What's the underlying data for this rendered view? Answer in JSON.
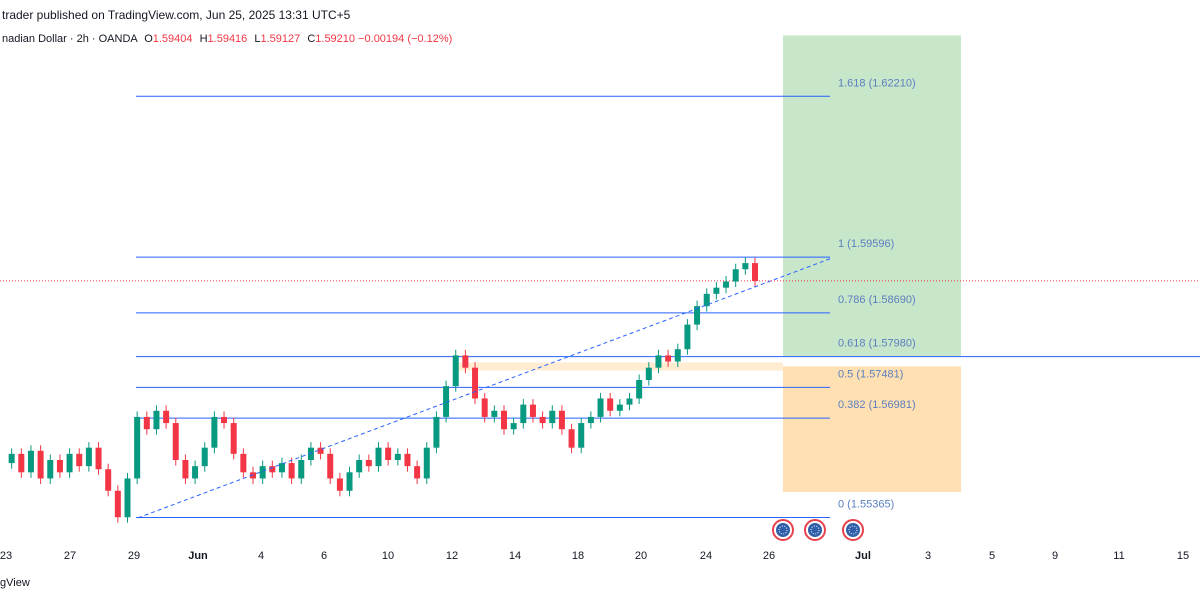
{
  "header": {
    "published": "trader published on TradingView.com, Jun 25, 2025 13:31 UTC+5",
    "symbol": "nadian Dollar · 2h · OANDA",
    "open_label": "O",
    "open": "1.59404",
    "high_label": "H",
    "high": "1.59416",
    "low_label": "L",
    "low": "1.59127",
    "close_label": "C",
    "close": "1.59210",
    "change": "−0.00194 (−0.12%)"
  },
  "footer": {
    "brand": "gView"
  },
  "colors": {
    "up": "#089981",
    "down": "#f23645",
    "fib_line": "#2962ff",
    "fib_text": "#5b7fbf",
    "target_zone": "#c8e6c9",
    "stop_zone": "#ffe0b2",
    "current_price": "#f23645",
    "marker": "#e8414d"
  },
  "chart_data": {
    "type": "candlestick",
    "title": "",
    "xlabel": "",
    "ylabel": "",
    "x_ticks": [
      "23",
      "27",
      "29",
      "Jun",
      "4",
      "6",
      "10",
      "12",
      "14",
      "18",
      "20",
      "24",
      "26",
      "Jul",
      "3",
      "5",
      "9",
      "11",
      "15"
    ],
    "ylim": [
      1.55,
      1.628
    ],
    "current_price": 1.5921,
    "fib_levels": [
      {
        "ratio": "1.618",
        "price": 1.6221,
        "label": "1.618 (1.62210)"
      },
      {
        "ratio": "1",
        "price": 1.59596,
        "label": "1 (1.59596)"
      },
      {
        "ratio": "0.786",
        "price": 1.5869,
        "label": "0.786 (1.58690)"
      },
      {
        "ratio": "0.618",
        "price": 1.5798,
        "label": "0.618 (1.57980)"
      },
      {
        "ratio": "0.5",
        "price": 1.57481,
        "label": "0.5 (1.57481)"
      },
      {
        "ratio": "0.382",
        "price": 1.56981,
        "label": "0.382 (1.56981)"
      },
      {
        "ratio": "0",
        "price": 1.55365,
        "label": "0 (1.55365)"
      }
    ],
    "zones": {
      "target": {
        "from": 1.5798,
        "to": 1.632
      },
      "stop": {
        "from": 1.5782,
        "to": 1.5578
      }
    },
    "trendline": {
      "from": 1.5536,
      "to": 1.5957
    },
    "price_path": [
      1.5625,
      1.564,
      1.561,
      1.5645,
      1.56,
      1.563,
      1.561,
      1.564,
      1.562,
      1.565,
      1.5615,
      1.558,
      1.5537,
      1.56,
      1.57,
      1.568,
      1.571,
      1.569,
      1.563,
      1.56,
      1.562,
      1.565,
      1.57,
      1.569,
      1.564,
      1.561,
      1.56,
      1.562,
      1.561,
      1.5625,
      1.56,
      1.563,
      1.565,
      1.564,
      1.56,
      1.558,
      1.561,
      1.563,
      1.562,
      1.565,
      1.563,
      1.564,
      1.562,
      1.56,
      1.565,
      1.57,
      1.575,
      1.58,
      1.578,
      1.573,
      1.57,
      1.571,
      1.568,
      1.569,
      1.572,
      1.57,
      1.569,
      1.571,
      1.568,
      1.565,
      1.569,
      1.57,
      1.573,
      1.571,
      1.572,
      1.573,
      1.576,
      1.578,
      1.58,
      1.579,
      1.581,
      1.585,
      1.588,
      1.59,
      1.591,
      1.592,
      1.594,
      1.595,
      1.5921
    ]
  }
}
